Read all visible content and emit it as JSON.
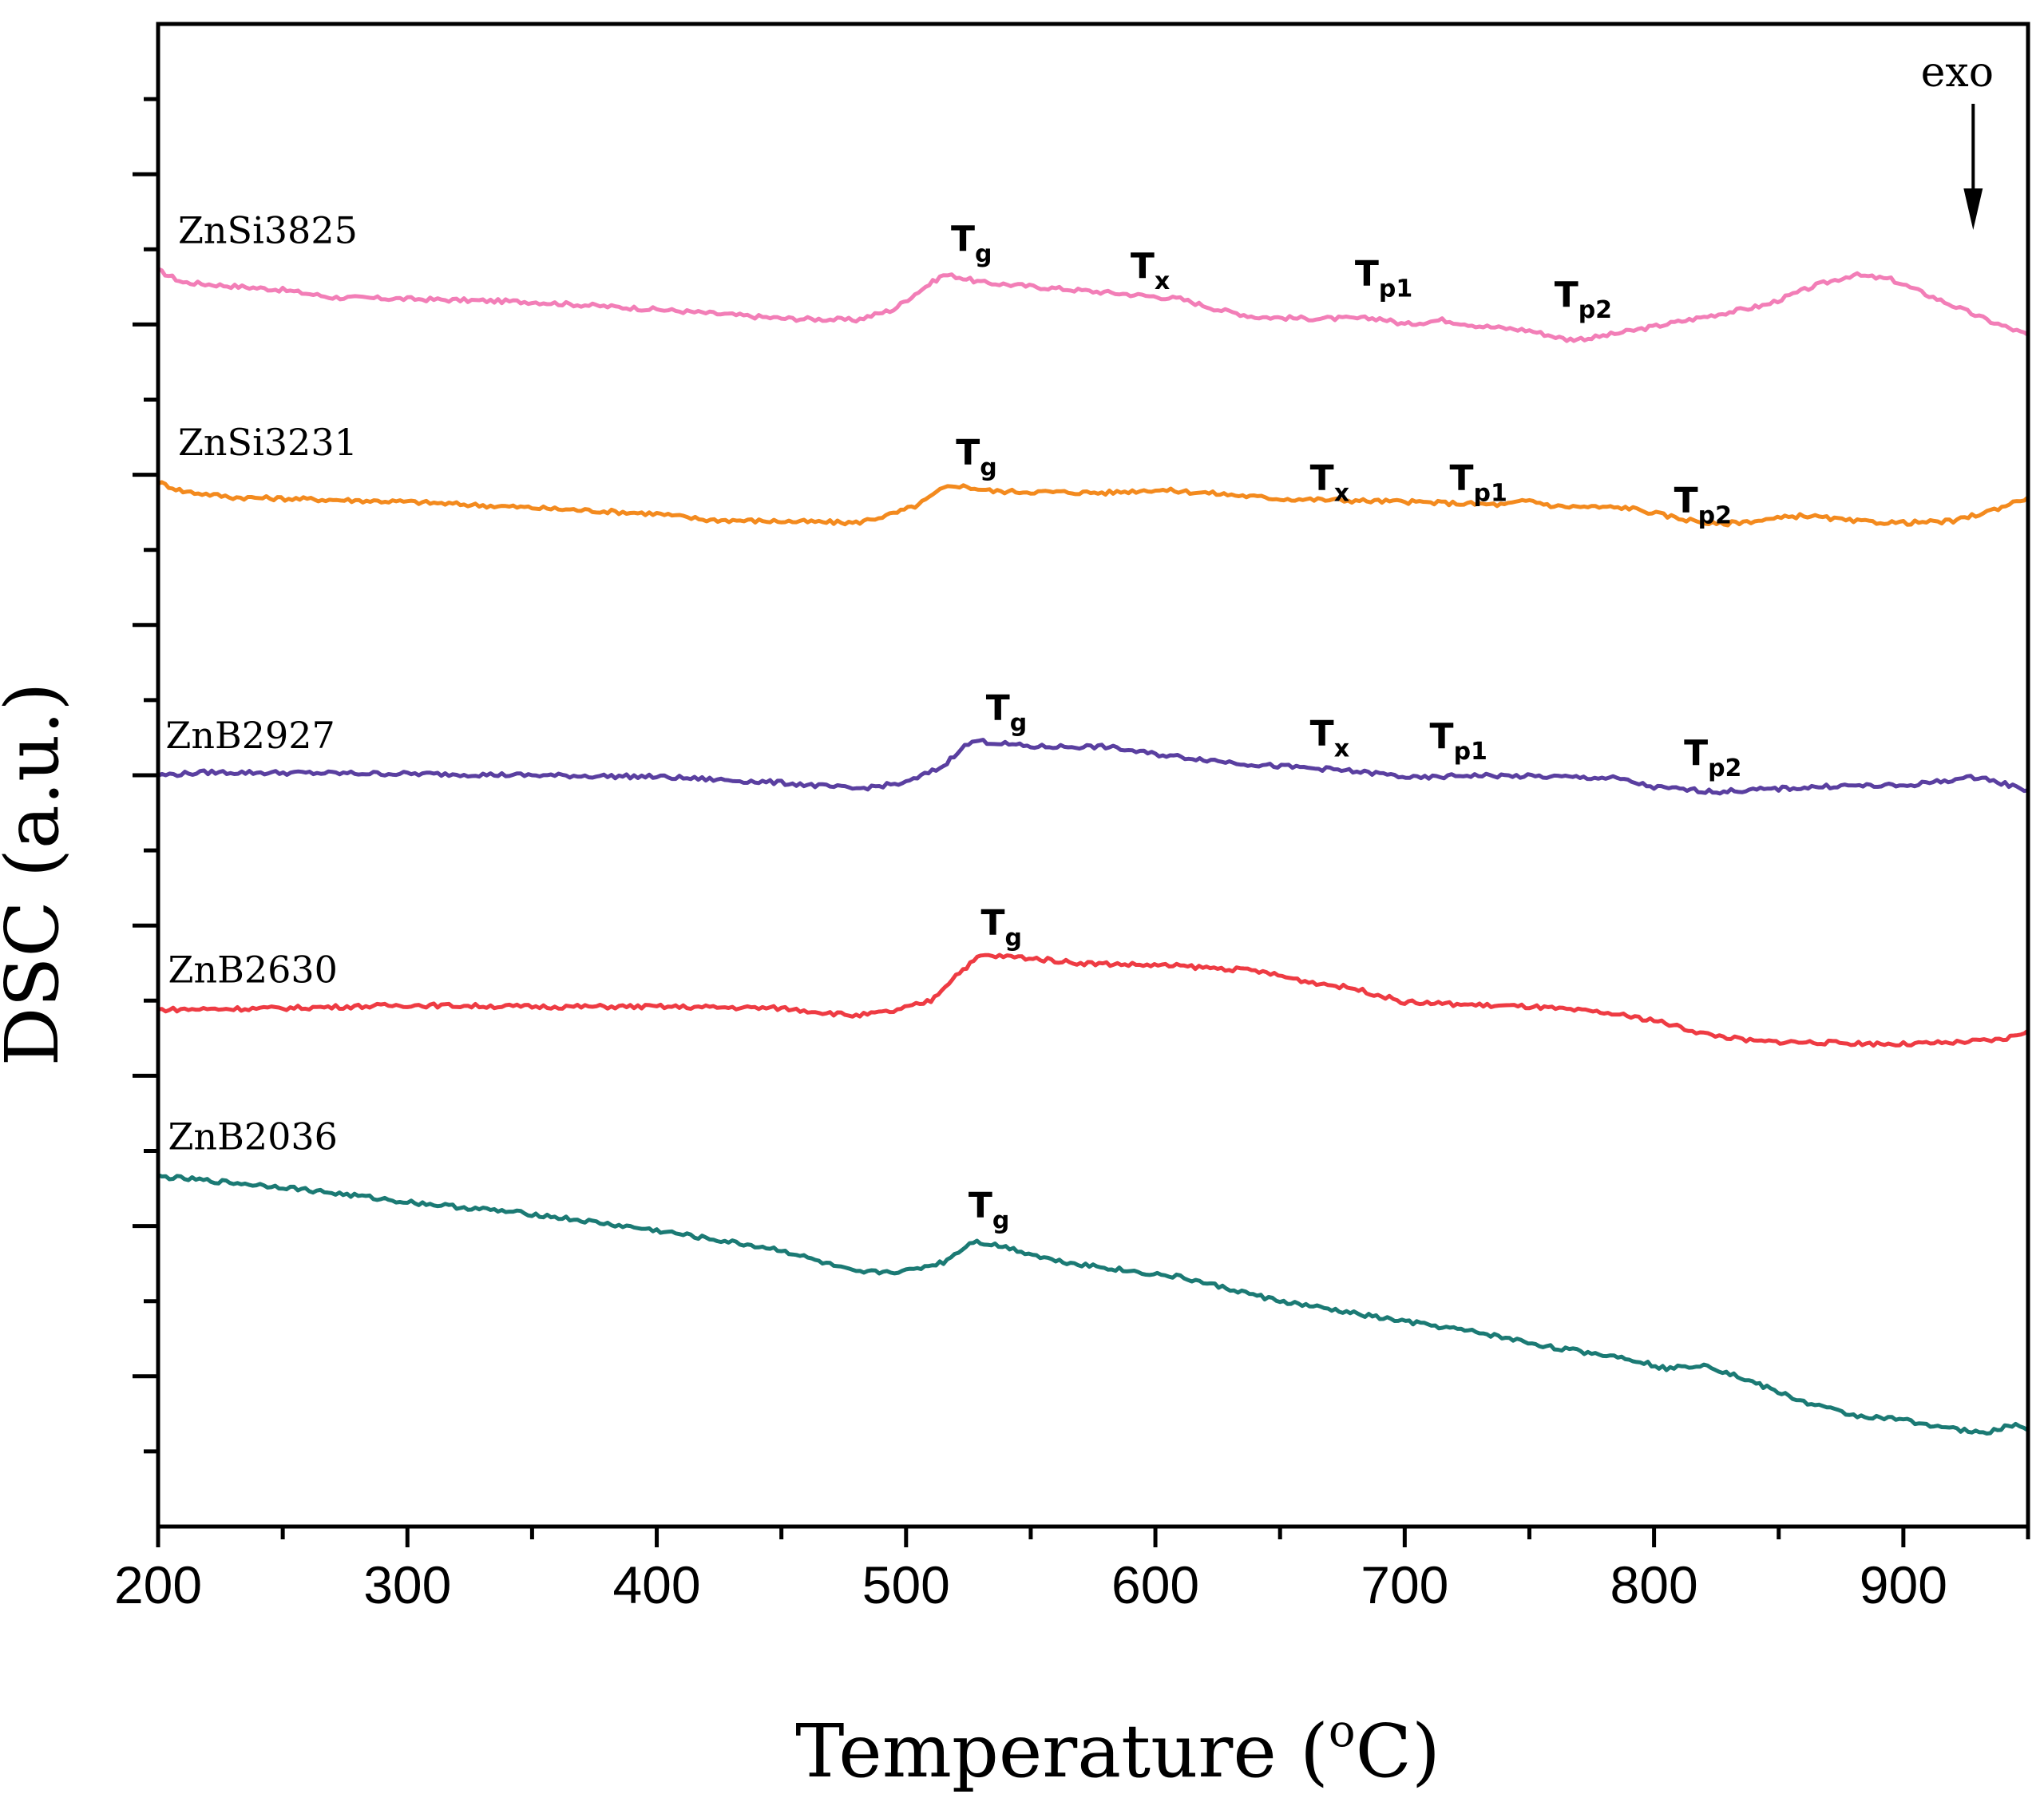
{
  "chart_data": {
    "type": "line",
    "xlabel": "Temperature (",
    "xlabel_unit_sup": "o",
    "xlabel_unit": "C)",
    "ylabel": "DSC (a.u.)",
    "xlim": [
      200,
      950
    ],
    "ylim": [
      0,
      100
    ],
    "x_ticks": [
      200,
      300,
      400,
      500,
      600,
      700,
      800,
      900
    ],
    "x_tick_labels": [
      "200",
      "300",
      "400",
      "500",
      "600",
      "700",
      "800",
      "900"
    ],
    "y_ticks": [
      10,
      20,
      30,
      40,
      50,
      60,
      70,
      80,
      90
    ],
    "y_tick_labels_visible": false,
    "grid": false,
    "exo_label": "exo",
    "exo_arrow_x": 928,
    "series": [
      {
        "name": "ZnSi3825",
        "color": "#f27eb7",
        "label_x": 208,
        "points": [
          [
            200,
            83.6
          ],
          [
            210,
            82.8
          ],
          [
            250,
            82.3
          ],
          [
            270,
            81.8
          ],
          [
            300,
            81.7
          ],
          [
            350,
            81.5
          ],
          [
            400,
            81.0
          ],
          [
            450,
            80.4
          ],
          [
            480,
            80.3
          ],
          [
            495,
            81.0
          ],
          [
            505,
            82.2
          ],
          [
            515,
            83.3
          ],
          [
            520,
            83.2
          ],
          [
            530,
            82.8
          ],
          [
            560,
            82.4
          ],
          [
            590,
            82.0
          ],
          [
            610,
            81.7
          ],
          [
            625,
            81.0
          ],
          [
            640,
            80.5
          ],
          [
            660,
            80.4
          ],
          [
            690,
            80.4
          ],
          [
            700,
            80.0
          ],
          [
            715,
            80.3
          ],
          [
            730,
            79.9
          ],
          [
            750,
            79.6
          ],
          [
            765,
            79.0
          ],
          [
            775,
            79.1
          ],
          [
            795,
            79.7
          ],
          [
            820,
            80.5
          ],
          [
            845,
            81.3
          ],
          [
            865,
            82.6
          ],
          [
            880,
            83.3
          ],
          [
            895,
            83.0
          ],
          [
            915,
            81.6
          ],
          [
            935,
            80.2
          ],
          [
            950,
            79.3
          ]
        ],
        "annotations": [
          {
            "main": "T",
            "sub": "g",
            "x": 518,
            "y": 84.9
          },
          {
            "main": "T",
            "sub": "x",
            "x": 590,
            "y": 83.1
          },
          {
            "main": "T",
            "sub": "p1",
            "x": 680,
            "y": 82.6
          },
          {
            "main": "T",
            "sub": "p2",
            "x": 760,
            "y": 81.2
          }
        ]
      },
      {
        "name": "ZnSi3231",
        "color": "#f38a1e",
        "label_x": 208,
        "points": [
          [
            200,
            69.5
          ],
          [
            210,
            68.9
          ],
          [
            230,
            68.5
          ],
          [
            300,
            68.2
          ],
          [
            350,
            67.8
          ],
          [
            400,
            67.4
          ],
          [
            420,
            67.0
          ],
          [
            450,
            66.9
          ],
          [
            480,
            66.8
          ],
          [
            495,
            67.4
          ],
          [
            505,
            68.0
          ],
          [
            515,
            69.1
          ],
          [
            520,
            69.3
          ],
          [
            535,
            68.9
          ],
          [
            580,
            68.8
          ],
          [
            600,
            69.0
          ],
          [
            620,
            68.8
          ],
          [
            650,
            68.4
          ],
          [
            700,
            68.2
          ],
          [
            740,
            68.0
          ],
          [
            750,
            68.3
          ],
          [
            760,
            67.9
          ],
          [
            790,
            67.8
          ],
          [
            810,
            67.1
          ],
          [
            825,
            66.7
          ],
          [
            845,
            67.0
          ],
          [
            860,
            67.3
          ],
          [
            880,
            66.9
          ],
          [
            900,
            66.8
          ],
          [
            920,
            66.9
          ],
          [
            935,
            67.6
          ],
          [
            950,
            68.5
          ]
        ],
        "annotations": [
          {
            "main": "T",
            "sub": "g",
            "x": 520,
            "y": 70.7
          },
          {
            "main": "T",
            "sub": "x",
            "x": 662,
            "y": 69.0
          },
          {
            "main": "T",
            "sub": "p1",
            "x": 718,
            "y": 69.0
          },
          {
            "main": "T",
            "sub": "p2",
            "x": 808,
            "y": 67.5
          }
        ]
      },
      {
        "name": "ZnB2927",
        "color": "#5a3fa0",
        "label_x": 203,
        "points": [
          [
            200,
            50.0
          ],
          [
            220,
            50.2
          ],
          [
            300,
            50.1
          ],
          [
            350,
            50.0
          ],
          [
            400,
            49.9
          ],
          [
            450,
            49.5
          ],
          [
            480,
            49.1
          ],
          [
            500,
            49.5
          ],
          [
            515,
            50.6
          ],
          [
            522,
            51.8
          ],
          [
            528,
            52.3
          ],
          [
            550,
            51.9
          ],
          [
            580,
            51.9
          ],
          [
            600,
            51.4
          ],
          [
            640,
            50.7
          ],
          [
            670,
            50.4
          ],
          [
            690,
            50.1
          ],
          [
            705,
            49.8
          ],
          [
            725,
            50.0
          ],
          [
            760,
            49.9
          ],
          [
            785,
            49.8
          ],
          [
            800,
            49.2
          ],
          [
            825,
            48.9
          ],
          [
            850,
            49.1
          ],
          [
            875,
            49.3
          ],
          [
            900,
            49.3
          ],
          [
            930,
            49.9
          ],
          [
            950,
            49.0
          ]
        ],
        "annotations": [
          {
            "main": "T",
            "sub": "g",
            "x": 532,
            "y": 53.7
          },
          {
            "main": "T",
            "sub": "x",
            "x": 662,
            "y": 52.0
          },
          {
            "main": "T",
            "sub": "p1",
            "x": 710,
            "y": 51.8
          },
          {
            "main": "T",
            "sub": "p2",
            "x": 812,
            "y": 50.7
          }
        ]
      },
      {
        "name": "ZnB2630",
        "color": "#ee3b43",
        "label_x": 204,
        "points": [
          [
            200,
            34.4
          ],
          [
            250,
            34.5
          ],
          [
            300,
            34.7
          ],
          [
            350,
            34.6
          ],
          [
            400,
            34.6
          ],
          [
            450,
            34.5
          ],
          [
            480,
            34.0
          ],
          [
            495,
            34.3
          ],
          [
            510,
            35.0
          ],
          [
            520,
            36.7
          ],
          [
            530,
            38.0
          ],
          [
            545,
            37.9
          ],
          [
            570,
            37.5
          ],
          [
            610,
            37.3
          ],
          [
            640,
            37.0
          ],
          [
            660,
            36.3
          ],
          [
            680,
            35.8
          ],
          [
            700,
            34.9
          ],
          [
            730,
            34.7
          ],
          [
            750,
            34.6
          ],
          [
            780,
            34.2
          ],
          [
            800,
            33.7
          ],
          [
            820,
            32.8
          ],
          [
            840,
            32.3
          ],
          [
            870,
            32.2
          ],
          [
            900,
            32.1
          ],
          [
            920,
            32.2
          ],
          [
            940,
            32.4
          ],
          [
            950,
            33.0
          ]
        ],
        "annotations": [
          {
            "main": "T",
            "sub": "g",
            "x": 530,
            "y": 39.4
          }
        ]
      },
      {
        "name": "ZnB2036",
        "color": "#1b7a74",
        "label_x": 204,
        "points": [
          [
            200,
            23.3
          ],
          [
            250,
            22.6
          ],
          [
            300,
            21.6
          ],
          [
            350,
            20.8
          ],
          [
            400,
            19.7
          ],
          [
            450,
            18.4
          ],
          [
            480,
            16.9
          ],
          [
            500,
            17.0
          ],
          [
            515,
            17.6
          ],
          [
            527,
            19.0
          ],
          [
            540,
            18.6
          ],
          [
            560,
            17.7
          ],
          [
            590,
            17.0
          ],
          [
            610,
            16.6
          ],
          [
            630,
            15.8
          ],
          [
            650,
            15.0
          ],
          [
            690,
            13.9
          ],
          [
            730,
            12.9
          ],
          [
            760,
            11.9
          ],
          [
            790,
            11.2
          ],
          [
            805,
            10.5
          ],
          [
            820,
            10.8
          ],
          [
            835,
            9.9
          ],
          [
            860,
            8.3
          ],
          [
            880,
            7.4
          ],
          [
            900,
            7.1
          ],
          [
            920,
            6.5
          ],
          [
            932,
            6.2
          ],
          [
            945,
            6.8
          ],
          [
            950,
            6.4
          ]
        ],
        "annotations": [
          {
            "main": "T",
            "sub": "g",
            "x": 525,
            "y": 20.6
          }
        ]
      }
    ]
  }
}
